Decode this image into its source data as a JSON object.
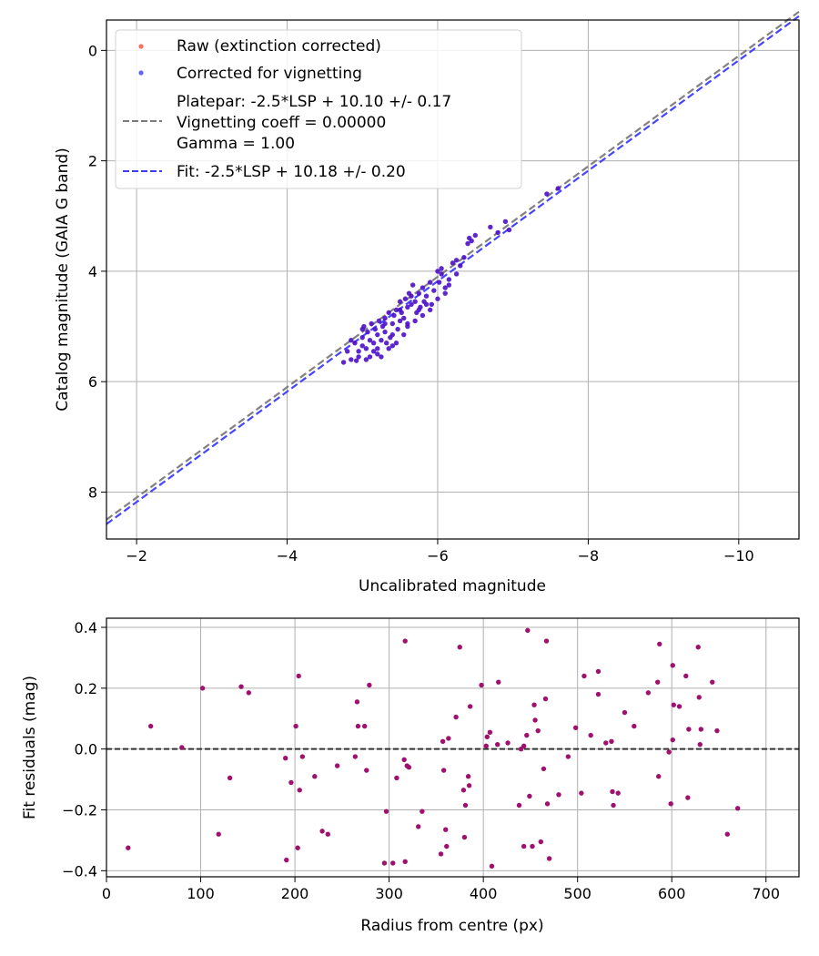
{
  "chart_data": [
    {
      "type": "scatter",
      "title": "",
      "xlabel": "Uncalibrated magnitude",
      "ylabel": "Catalog magnitude (GAIA G band)",
      "xlim": [
        -1.6,
        -10.8
      ],
      "ylim": [
        8.85,
        -0.55
      ],
      "x_inverted": true,
      "y_inverted": true,
      "grid": true,
      "xticks": [
        -2,
        -4,
        -6,
        -8,
        -10
      ],
      "xtick_labels": [
        "−2",
        "−4",
        "−6",
        "−8",
        "−10"
      ],
      "yticks": [
        0,
        2,
        4,
        6,
        8
      ],
      "ytick_labels": [
        "0",
        "2",
        "4",
        "6",
        "8"
      ],
      "legend": {
        "placement": "top-left",
        "entries": [
          {
            "kind": "marker",
            "label": "Raw (extinction corrected)",
            "color": "#ff4b3a"
          },
          {
            "kind": "marker",
            "label": "Corrected for vignetting",
            "color": "#3b3bff"
          },
          {
            "kind": "line",
            "label_lines": [
              "Platepar: -2.5*LSP + 10.10 +/- 0.17",
              "Vignetting coeff = 0.00000",
              "Gamma = 1.00"
            ],
            "color": "#7a7a7a"
          },
          {
            "kind": "line",
            "label_lines": [
              "Fit: -2.5*LSP + 10.18 +/- 0.20"
            ],
            "color": "#3b3bff"
          }
        ]
      },
      "lines": [
        {
          "name": "Platepar",
          "slope": 1.0,
          "intercept": 10.1,
          "color": "#7a7a7a"
        },
        {
          "name": "Fit",
          "slope": 1.0,
          "intercept": 10.18,
          "color": "#3b3bff"
        }
      ],
      "series": [
        {
          "name": "Corrected for vignetting",
          "color": "#4b10c8",
          "points": [
            [
              -4.75,
              5.65
            ],
            [
              -4.8,
              5.45
            ],
            [
              -4.85,
              5.6
            ],
            [
              -4.9,
              5.3
            ],
            [
              -4.92,
              5.62
            ],
            [
              -4.95,
              5.55
            ],
            [
              -5.0,
              5.2
            ],
            [
              -5.0,
              5.35
            ],
            [
              -5.02,
              5.0
            ],
            [
              -5.05,
              5.4
            ],
            [
              -5.07,
              5.1
            ],
            [
              -5.1,
              5.25
            ],
            [
              -5.1,
              5.55
            ],
            [
              -5.12,
              4.95
            ],
            [
              -5.15,
              5.3
            ],
            [
              -5.17,
              5.05
            ],
            [
              -5.2,
              5.15
            ],
            [
              -5.2,
              5.4
            ],
            [
              -5.22,
              4.9
            ],
            [
              -5.25,
              5.25
            ],
            [
              -5.27,
              5.0
            ],
            [
              -5.3,
              4.85
            ],
            [
              -5.3,
              5.1
            ],
            [
              -5.32,
              5.3
            ],
            [
              -5.35,
              4.75
            ],
            [
              -5.37,
              5.2
            ],
            [
              -5.4,
              4.95
            ],
            [
              -5.4,
              5.15
            ],
            [
              -5.42,
              4.8
            ],
            [
              -5.45,
              4.7
            ],
            [
              -5.47,
              5.05
            ],
            [
              -5.5,
              4.55
            ],
            [
              -5.5,
              4.9
            ],
            [
              -5.52,
              4.75
            ],
            [
              -5.55,
              4.85
            ],
            [
              -5.57,
              4.5
            ],
            [
              -5.6,
              4.65
            ],
            [
              -5.62,
              4.4
            ],
            [
              -5.65,
              4.6
            ],
            [
              -5.67,
              4.25
            ],
            [
              -5.7,
              4.55
            ],
            [
              -5.72,
              4.75
            ],
            [
              -5.75,
              4.4
            ],
            [
              -5.77,
              4.65
            ],
            [
              -5.8,
              4.3
            ],
            [
              -5.82,
              4.55
            ],
            [
              -5.85,
              4.45
            ],
            [
              -5.9,
              4.2
            ],
            [
              -5.92,
              4.6
            ],
            [
              -5.95,
              4.35
            ],
            [
              -6.0,
              4.0
            ],
            [
              -6.02,
              4.2
            ],
            [
              -6.05,
              4.05
            ],
            [
              -6.1,
              4.3
            ],
            [
              -6.15,
              4.15
            ],
            [
              -6.2,
              3.85
            ],
            [
              -6.25,
              4.05
            ],
            [
              -6.3,
              3.9
            ],
            [
              -6.35,
              3.75
            ],
            [
              -6.4,
              3.5
            ],
            [
              -6.42,
              3.4
            ],
            [
              -6.45,
              3.45
            ],
            [
              -6.5,
              3.35
            ],
            [
              -6.7,
              3.2
            ],
            [
              -6.8,
              3.3
            ],
            [
              -6.9,
              3.1
            ],
            [
              -6.95,
              3.25
            ],
            [
              -7.45,
              2.6
            ],
            [
              -7.6,
              2.5
            ],
            [
              -4.85,
              5.25
            ],
            [
              -4.95,
              5.45
            ],
            [
              -5.05,
              5.6
            ],
            [
              -5.15,
              5.45
            ],
            [
              -5.25,
              5.55
            ],
            [
              -5.35,
              5.4
            ],
            [
              -5.45,
              5.3
            ],
            [
              -5.55,
              5.15
            ],
            [
              -5.6,
              5.0
            ],
            [
              -5.7,
              4.9
            ],
            [
              -5.8,
              4.8
            ],
            [
              -5.9,
              4.7
            ],
            [
              -6.0,
              4.5
            ],
            [
              -6.1,
              4.4
            ],
            [
              -5.0,
              5.05
            ],
            [
              -5.3,
              4.95
            ],
            [
              -5.5,
              4.7
            ],
            [
              -5.65,
              4.45
            ],
            [
              -6.05,
              3.95
            ],
            [
              -6.25,
              3.8
            ],
            [
              -5.2,
              5.5
            ],
            [
              -5.4,
              5.35
            ],
            [
              -5.6,
              4.95
            ],
            [
              -5.75,
              4.7
            ],
            [
              -5.85,
              4.6
            ],
            [
              -6.15,
              4.25
            ]
          ]
        }
      ]
    },
    {
      "type": "scatter",
      "title": "",
      "xlabel": "Radius from centre (px)",
      "ylabel": "Fit residuals (mag)",
      "xlim": [
        0,
        735
      ],
      "ylim": [
        -0.42,
        0.43
      ],
      "grid": true,
      "xticks": [
        0,
        100,
        200,
        300,
        400,
        500,
        600,
        700
      ],
      "xtick_labels": [
        "0",
        "100",
        "200",
        "300",
        "400",
        "500",
        "600",
        "700"
      ],
      "yticks": [
        0.4,
        0.2,
        0.0,
        -0.2,
        -0.4
      ],
      "ytick_labels": [
        "0.4",
        "0.2",
        "0.0",
        "−0.2",
        "−0.4"
      ],
      "hline": {
        "y": 0.0,
        "color": "#333333",
        "style": "dashed"
      },
      "series": [
        {
          "name": "residuals",
          "color": "#a0106e",
          "points": [
            [
              23,
              -0.325
            ],
            [
              47,
              0.075
            ],
            [
              80,
              0.005
            ],
            [
              102,
              0.2
            ],
            [
              119,
              -0.28
            ],
            [
              131,
              -0.095
            ],
            [
              143,
              0.205
            ],
            [
              151,
              0.185
            ],
            [
              190,
              -0.03
            ],
            [
              191,
              -0.365
            ],
            [
              196,
              -0.11
            ],
            [
              201,
              0.075
            ],
            [
              203,
              -0.325
            ],
            [
              204,
              0.24
            ],
            [
              205,
              -0.135
            ],
            [
              208,
              -0.025
            ],
            [
              221,
              -0.09
            ],
            [
              229,
              -0.27
            ],
            [
              235,
              -0.28
            ],
            [
              245,
              -0.055
            ],
            [
              264,
              -0.025
            ],
            [
              266,
              0.155
            ],
            [
              267,
              0.075
            ],
            [
              274,
              0.075
            ],
            [
              276,
              -0.07
            ],
            [
              279,
              0.21
            ],
            [
              295,
              -0.375
            ],
            [
              297,
              -0.205
            ],
            [
              304,
              -0.375
            ],
            [
              308,
              -0.095
            ],
            [
              316,
              -0.035
            ],
            [
              317,
              0.355
            ],
            [
              317,
              -0.37
            ],
            [
              319,
              -0.055
            ],
            [
              321,
              -0.06
            ],
            [
              331,
              -0.255
            ],
            [
              335,
              -0.205
            ],
            [
              355,
              -0.345
            ],
            [
              357,
              0.025
            ],
            [
              358,
              -0.07
            ],
            [
              360,
              -0.265
            ],
            [
              361,
              -0.32
            ],
            [
              363,
              0.035
            ],
            [
              371,
              0.105
            ],
            [
              375,
              0.335
            ],
            [
              379,
              -0.135
            ],
            [
              380,
              -0.29
            ],
            [
              381,
              -0.185
            ],
            [
              384,
              -0.09
            ],
            [
              385,
              -0.12
            ],
            [
              386,
              0.14
            ],
            [
              398,
              0.21
            ],
            [
              403,
              0.01
            ],
            [
              404,
              0.04
            ],
            [
              407,
              0.055
            ],
            [
              409,
              -0.385
            ],
            [
              415,
              0.015
            ],
            [
              416,
              0.22
            ],
            [
              426,
              0.02
            ],
            [
              438,
              -0.185
            ],
            [
              440,
              0.0
            ],
            [
              443,
              0.01
            ],
            [
              443,
              -0.32
            ],
            [
              446,
              0.045
            ],
            [
              447,
              0.39
            ],
            [
              449,
              -0.155
            ],
            [
              452,
              -0.32
            ],
            [
              454,
              0.145
            ],
            [
              455,
              0.095
            ],
            [
              458,
              0.06
            ],
            [
              461,
              -0.305
            ],
            [
              464,
              -0.065
            ],
            [
              466,
              0.165
            ],
            [
              467,
              0.355
            ],
            [
              468,
              -0.18
            ],
            [
              470,
              -0.36
            ],
            [
              480,
              -0.15
            ],
            [
              490,
              -0.025
            ],
            [
              498,
              0.07
            ],
            [
              504,
              -0.145
            ],
            [
              507,
              0.24
            ],
            [
              514,
              0.045
            ],
            [
              522,
              0.255
            ],
            [
              522,
              0.18
            ],
            [
              530,
              0.02
            ],
            [
              536,
              0.025
            ],
            [
              537,
              -0.14
            ],
            [
              538,
              -0.185
            ],
            [
              543,
              -0.145
            ],
            [
              550,
              0.12
            ],
            [
              560,
              0.075
            ],
            [
              575,
              0.185
            ],
            [
              585,
              0.22
            ],
            [
              586,
              -0.09
            ],
            [
              587,
              0.345
            ],
            [
              597,
              -0.01
            ],
            [
              599,
              -0.18
            ],
            [
              601,
              0.03
            ],
            [
              601,
              0.275
            ],
            [
              602,
              0.145
            ],
            [
              608,
              0.14
            ],
            [
              615,
              0.24
            ],
            [
              617,
              -0.16
            ],
            [
              618,
              0.065
            ],
            [
              628,
              0.335
            ],
            [
              629,
              0.17
            ],
            [
              630,
              0.015
            ],
            [
              631,
              0.065
            ],
            [
              643,
              0.22
            ],
            [
              648,
              0.06
            ],
            [
              659,
              -0.28
            ],
            [
              670,
              -0.195
            ]
          ]
        }
      ]
    }
  ]
}
